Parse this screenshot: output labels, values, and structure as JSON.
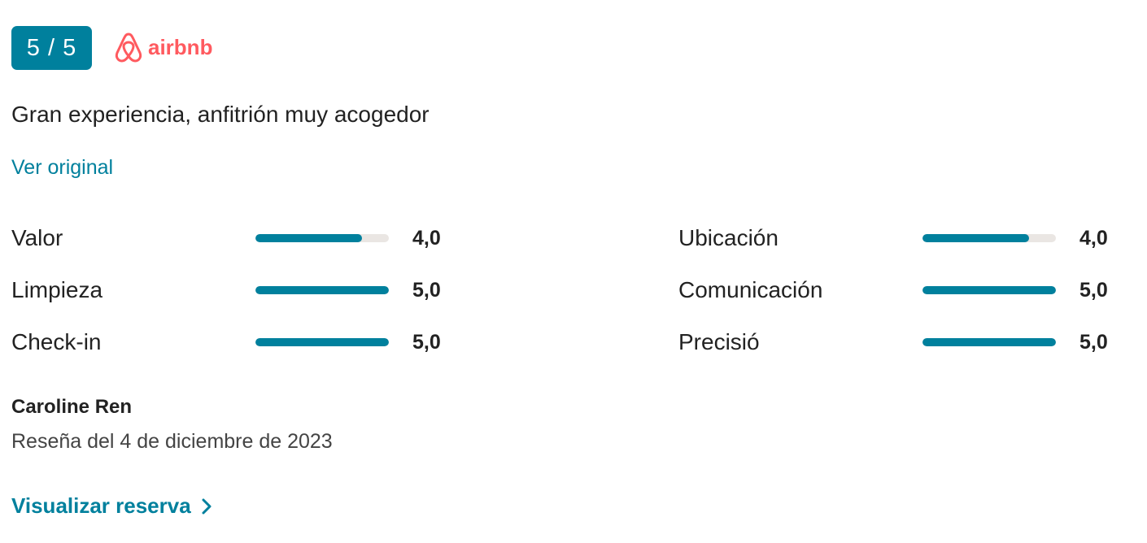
{
  "rating": {
    "badge": "5 / 5"
  },
  "source": {
    "logo_text": "airbnb",
    "brand_color": "#ff5a5f"
  },
  "review": {
    "title": "Gran experiencia, anfitrión muy acogedor",
    "see_original": "Ver original"
  },
  "scores": [
    {
      "label": "Valor",
      "value": "4,0",
      "fraction": 0.8
    },
    {
      "label": "Limpieza",
      "value": "5,0",
      "fraction": 1.0
    },
    {
      "label": "Check-in",
      "value": "5,0",
      "fraction": 1.0
    },
    {
      "label": "Ubicación",
      "value": "4,0",
      "fraction": 0.8
    },
    {
      "label": "Comunicación",
      "value": "5,0",
      "fraction": 1.0
    },
    {
      "label": "Precisió",
      "value": "5,0",
      "fraction": 1.0
    }
  ],
  "author": {
    "name": "Caroline Ren",
    "date": "Reseña del 4 de diciembre de 2023"
  },
  "actions": {
    "view_booking": "Visualizar reserva",
    "view_booking_icon": "chevron-right-icon"
  },
  "colors": {
    "accent": "#00809d",
    "track": "#eae6e3"
  }
}
